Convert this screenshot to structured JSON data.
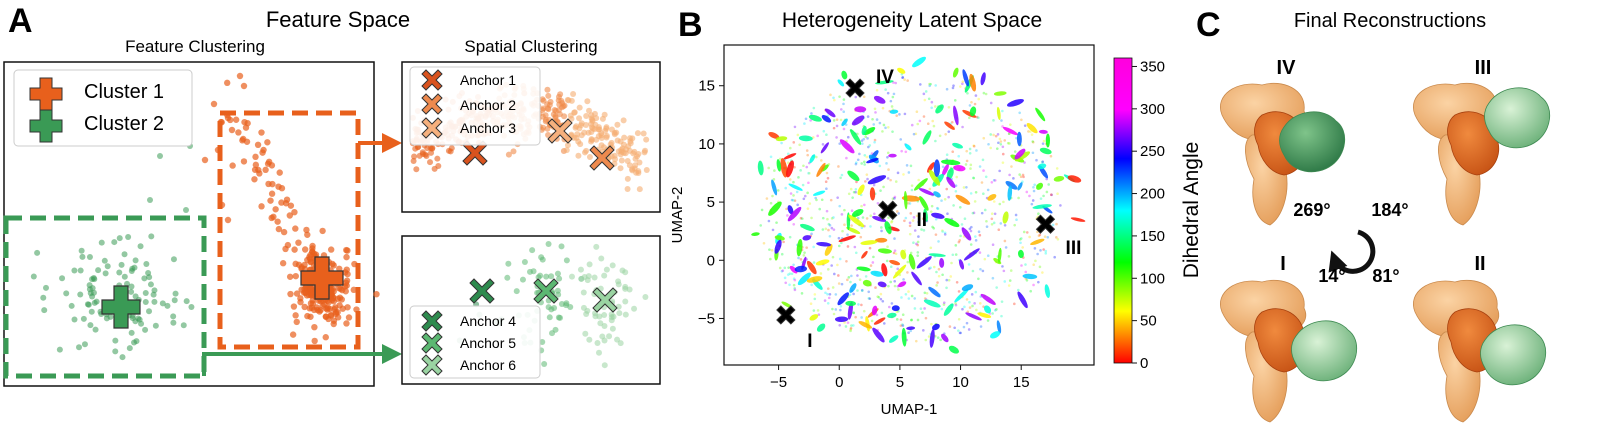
{
  "panel_a": {
    "letter": "A",
    "title": "Feature Space",
    "feature_title": "Feature Clustering",
    "spatial_title": "Spatial Clustering",
    "legend": [
      {
        "label": "Cluster 1",
        "color": "#e8601c"
      },
      {
        "label": "Cluster 2",
        "color": "#3a9a55"
      }
    ],
    "anchors_top": [
      {
        "label": "Anchor 1",
        "color": "#d9531e"
      },
      {
        "label": "Anchor 2",
        "color": "#ee8a4e"
      },
      {
        "label": "Anchor 3",
        "color": "#f6b07d"
      }
    ],
    "anchors_bottom": [
      {
        "label": "Anchor 4",
        "color": "#2e8b4e"
      },
      {
        "label": "Anchor 5",
        "color": "#5cb872"
      },
      {
        "label": "Anchor 6",
        "color": "#9ad4a2"
      }
    ]
  },
  "panel_b": {
    "letter": "B",
    "title": "Heterogeneity Latent Space",
    "chart_data": {
      "type": "scatter",
      "xlabel": "UMAP-1",
      "ylabel": "UMAP-2",
      "xlim": [
        -9.5,
        21
      ],
      "ylim": [
        -9,
        18.5
      ],
      "x_ticks": [
        -5,
        0,
        5,
        10,
        15
      ],
      "y_ticks": [
        -5,
        0,
        5,
        10,
        15
      ],
      "colorbar": {
        "label": "Dihedral Angle",
        "ticks": [
          0,
          50,
          100,
          150,
          200,
          250,
          300,
          350
        ],
        "range": [
          0,
          360
        ]
      },
      "markers": [
        {
          "label": "IV",
          "x": 1.3,
          "y": 14.8
        },
        {
          "label": "II",
          "x": 4.0,
          "y": 4.3
        },
        {
          "label": "III",
          "x": 17.0,
          "y": 3.1
        },
        {
          "label": "I",
          "x": -4.4,
          "y": -4.7
        }
      ]
    }
  },
  "panel_c": {
    "letter": "C",
    "title": "Final Reconstructions",
    "labels": {
      "top_left": "IV",
      "top_right": "III",
      "bottom_left": "I",
      "bottom_right": "II"
    },
    "angles": {
      "top_left": "269°",
      "top_right": "184°",
      "bottom_left": "14°",
      "bottom_right": "81°"
    }
  },
  "colors": {
    "orange": "#e8601c",
    "green": "#3a9a55",
    "light_orange": "#f5ae72",
    "light_green": "#9ad4a2"
  }
}
